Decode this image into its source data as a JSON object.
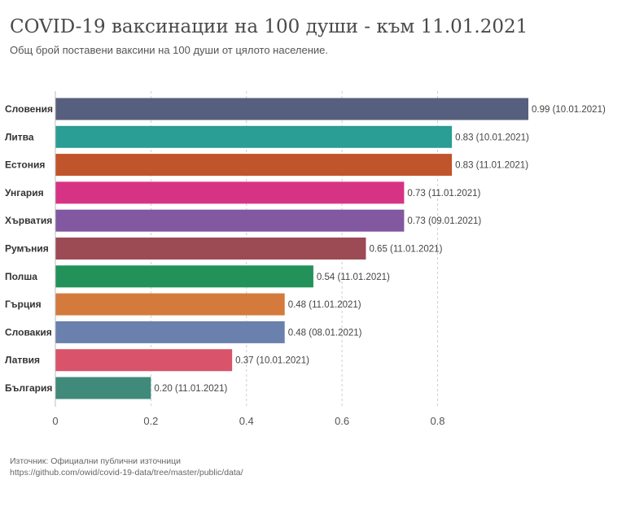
{
  "chart_data": {
    "type": "bar",
    "orientation": "horizontal",
    "title": "COVID-19 ваксинации на 100 души - към 11.01.2021",
    "subtitle": "Общ брой поставени ваксини на 100 души от цялото население.",
    "categories": [
      "Словения",
      "Литва",
      "Естония",
      "Унгария",
      "Хърватия",
      "Румъния",
      "Полша",
      "Гърция",
      "Словакия",
      "Латвия",
      "България"
    ],
    "values": [
      0.99,
      0.83,
      0.83,
      0.73,
      0.73,
      0.65,
      0.54,
      0.48,
      0.48,
      0.37,
      0.2
    ],
    "value_labels": [
      "0.99 (10.01.2021)",
      "0.83 (10.01.2021)",
      "0.83 (11.01.2021)",
      "0.73 (11.01.2021)",
      "0.73 (09.01.2021)",
      "0.65 (11.01.2021)",
      "0.54 (11.01.2021)",
      "0.48 (11.01.2021)",
      "0.48 (08.01.2021)",
      "0.37 (10.01.2021)",
      "0.20 (11.01.2021)"
    ],
    "colors": [
      "#565f7d",
      "#2a9d94",
      "#c0542b",
      "#d63384",
      "#8258a0",
      "#9c4a54",
      "#23915a",
      "#d47a3c",
      "#6a80ad",
      "#d9546b",
      "#3f8a7a"
    ],
    "xticks": [
      0,
      0.2,
      0.4,
      0.6,
      0.8
    ],
    "xtick_labels": [
      "0",
      "0.2",
      "0.4",
      "0.6",
      "0.8"
    ],
    "xlim": [
      0,
      0.99
    ],
    "xlabel": "",
    "ylabel": "",
    "grid": "vertical-dashed",
    "legend": "none"
  },
  "footer": {
    "source": "Източник: Официални публични източници",
    "url": "https://github.com/owid/covid-19-data/tree/master/public/data/"
  }
}
